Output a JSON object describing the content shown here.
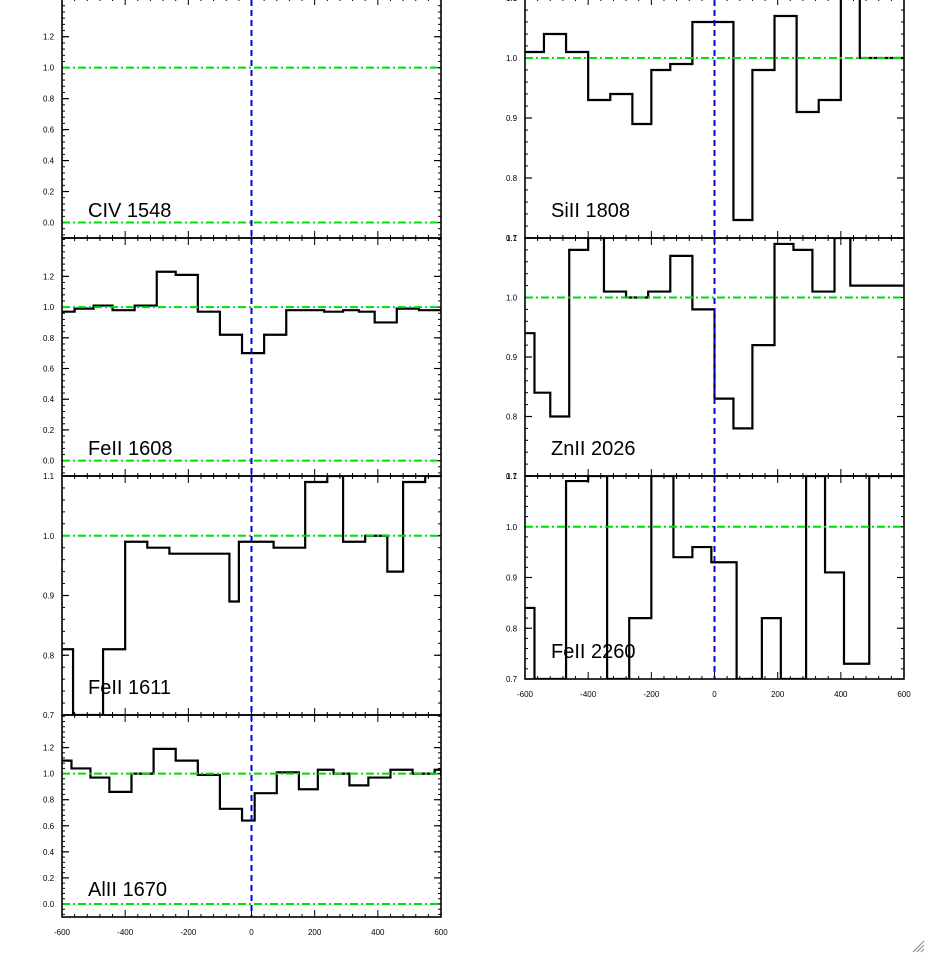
{
  "chart_data": [
    {
      "type": "line",
      "title": "CIV 1548",
      "ylim": [
        -0.1,
        1.45
      ],
      "xlim": [
        -600,
        600
      ],
      "yticks": [
        "0.0",
        "0.2",
        "0.4",
        "0.6",
        "0.8",
        "1.0",
        "1.2"
      ],
      "ytick_values": [
        0.0,
        0.2,
        0.4,
        0.6,
        0.8,
        1.0,
        1.2
      ],
      "xticks": [],
      "xtick_values": [],
      "reference_lines": [
        0.0,
        1.0
      ],
      "velocity_zero": 0,
      "series": [
        {
          "x": [],
          "y": []
        }
      ]
    },
    {
      "type": "line",
      "title": "FeII 1608",
      "ylim": [
        -0.1,
        1.45
      ],
      "xlim": [
        -600,
        600
      ],
      "yticks": [
        "0.0",
        "0.2",
        "0.4",
        "0.6",
        "0.8",
        "1.0",
        "1.2"
      ],
      "ytick_values": [
        0.0,
        0.2,
        0.4,
        0.6,
        0.8,
        1.0,
        1.2
      ],
      "xticks": [],
      "xtick_values": [],
      "reference_lines": [
        0.0,
        1.0
      ],
      "velocity_zero": 0,
      "series": [
        {
          "x": [
            -600,
            -560,
            -500,
            -440,
            -370,
            -300,
            -240,
            -170,
            -100,
            -30,
            40,
            110,
            170,
            230,
            290,
            340,
            390,
            460,
            530,
            600
          ],
          "y": [
            0.97,
            0.99,
            1.01,
            0.98,
            1.01,
            1.23,
            1.21,
            0.97,
            0.82,
            0.7,
            0.82,
            0.98,
            0.98,
            0.97,
            0.98,
            0.97,
            0.9,
            0.99,
            0.98,
            0.98
          ]
        }
      ]
    },
    {
      "type": "line",
      "title": "FeII 1611",
      "ylim": [
        0.7,
        1.1
      ],
      "xlim": [
        -600,
        600
      ],
      "yticks": [
        "0.7",
        "0.8",
        "0.9",
        "1.0",
        "1.1"
      ],
      "ytick_values": [
        0.7,
        0.8,
        0.9,
        1.0,
        1.1
      ],
      "xticks": [],
      "xtick_values": [],
      "reference_lines": [
        1.0
      ],
      "velocity_zero": 0,
      "series": [
        {
          "x": [
            -600,
            -565,
            -535,
            -470,
            -400,
            -330,
            -260,
            -200,
            -130,
            -70,
            -40,
            20,
            70,
            120,
            170,
            210,
            240,
            290,
            360,
            430,
            480,
            550,
            600
          ],
          "y": [
            0.81,
            0.7,
            0.7,
            0.81,
            0.99,
            0.98,
            0.97,
            0.97,
            0.97,
            0.89,
            0.99,
            0.99,
            0.98,
            0.98,
            1.09,
            1.09,
            1.1,
            0.99,
            1.0,
            0.94,
            1.09,
            1.1,
            1.1
          ]
        }
      ]
    },
    {
      "type": "line",
      "title": "AlII 1670",
      "ylim": [
        -0.1,
        1.45
      ],
      "xlim": [
        -600,
        600
      ],
      "yticks": [
        "0.0",
        "0.2",
        "0.4",
        "0.6",
        "0.8",
        "1.0",
        "1.2"
      ],
      "ytick_values": [
        0.0,
        0.2,
        0.4,
        0.6,
        0.8,
        1.0,
        1.2
      ],
      "xticks": [
        "-600",
        "-400",
        "-200",
        "0",
        "200",
        "400",
        "600"
      ],
      "xtick_values": [
        -600,
        -400,
        -200,
        0,
        200,
        400,
        600
      ],
      "reference_lines": [
        0.0,
        1.0
      ],
      "velocity_zero": 0,
      "series": [
        {
          "x": [
            -600,
            -570,
            -510,
            -450,
            -380,
            -310,
            -240,
            -170,
            -100,
            -30,
            10,
            80,
            150,
            210,
            260,
            310,
            370,
            440,
            510,
            580,
            600
          ],
          "y": [
            1.1,
            1.04,
            0.97,
            0.86,
            1.0,
            1.19,
            1.1,
            0.99,
            0.73,
            0.64,
            0.85,
            1.01,
            0.88,
            1.03,
            1.0,
            0.91,
            0.97,
            1.03,
            1.0,
            1.03,
            0.98
          ]
        }
      ]
    },
    {
      "type": "line",
      "title": "SiII 1808",
      "ylim": [
        0.7,
        1.1
      ],
      "xlim": [
        -600,
        600
      ],
      "yticks": [
        "0.7",
        "0.8",
        "0.9",
        "1.0",
        "1.1"
      ],
      "ytick_values": [
        0.7,
        0.8,
        0.9,
        1.0,
        1.1
      ],
      "xticks": [],
      "xtick_values": [],
      "reference_lines": [
        1.0
      ],
      "velocity_zero": 0,
      "series": [
        {
          "x": [
            -600,
            -540,
            -470,
            -400,
            -330,
            -260,
            -200,
            -140,
            -70,
            -10,
            60,
            120,
            190,
            260,
            330,
            400,
            460,
            490,
            600
          ],
          "y": [
            1.01,
            1.04,
            1.01,
            0.93,
            0.94,
            0.89,
            0.98,
            0.99,
            1.06,
            1.06,
            0.73,
            0.98,
            1.07,
            0.91,
            0.93,
            1.1,
            1.0,
            1.0,
            1.0
          ]
        }
      ]
    },
    {
      "type": "line",
      "title": "ZnII 2026",
      "ylim": [
        0.7,
        1.1
      ],
      "xlim": [
        -600,
        600
      ],
      "yticks": [
        "0.7",
        "0.8",
        "0.9",
        "1.0",
        "1.1"
      ],
      "ytick_values": [
        0.7,
        0.8,
        0.9,
        1.0,
        1.1
      ],
      "xticks": [],
      "xtick_values": [],
      "reference_lines": [
        1.0
      ],
      "velocity_zero": 0,
      "series": [
        {
          "x": [
            -600,
            -570,
            -520,
            -460,
            -400,
            -350,
            -280,
            -210,
            -140,
            -70,
            0,
            60,
            120,
            190,
            250,
            310,
            380,
            430,
            490,
            600
          ],
          "y": [
            0.94,
            0.84,
            0.8,
            1.08,
            1.1,
            1.01,
            1.0,
            1.01,
            1.07,
            0.98,
            0.83,
            0.78,
            0.92,
            1.09,
            1.08,
            1.01,
            1.1,
            1.02,
            1.02,
            1.02
          ]
        }
      ]
    },
    {
      "type": "line",
      "title": "FeII 2260",
      "ylim": [
        0.7,
        1.1
      ],
      "xlim": [
        -600,
        600
      ],
      "yticks": [
        "0.7",
        "0.8",
        "0.9",
        "1.0",
        "1.1"
      ],
      "ytick_values": [
        0.7,
        0.8,
        0.9,
        1.0,
        1.1
      ],
      "xticks": [
        "-600",
        "-400",
        "-200",
        "0",
        "200",
        "400",
        "600"
      ],
      "xtick_values": [
        -600,
        -400,
        -200,
        0,
        200,
        400,
        600
      ],
      "reference_lines": [
        1.0
      ],
      "velocity_zero": 0,
      "series": [
        {
          "x": [
            -600,
            -570,
            -470,
            -400,
            -340,
            -270,
            -200,
            -130,
            -70,
            -10,
            70,
            150,
            210,
            290,
            350,
            410,
            490,
            600
          ],
          "y": [
            0.84,
            0.7,
            1.09,
            1.1,
            0.7,
            0.82,
            1.1,
            0.94,
            0.96,
            0.93,
            0.7,
            0.82,
            0.7,
            1.1,
            0.91,
            0.73,
            1.1,
            1.1
          ]
        }
      ]
    }
  ],
  "colors": {
    "reference_line": "#00dd00",
    "zero_velocity_line": "#0000ee",
    "data_line": "#000000",
    "axes": "#000000"
  },
  "icons": {
    "resize_grip": "resize-grip-icon"
  }
}
